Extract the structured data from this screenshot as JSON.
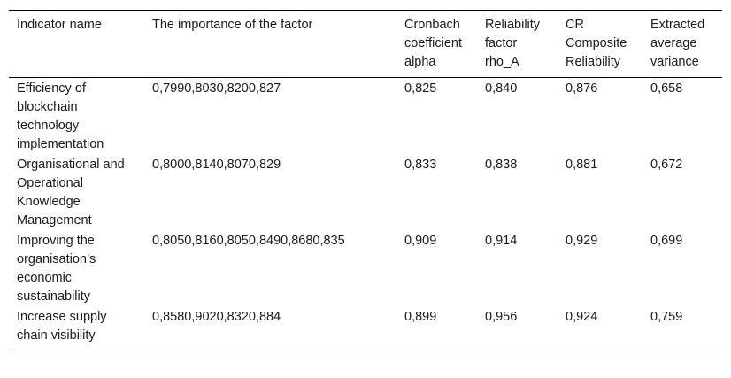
{
  "table": {
    "headers": [
      "Indicator name",
      "The importance of the factor",
      "Cronbach coefficient alpha",
      "Reliability factor rho_A",
      "CR Composite Reliability",
      "Extracted average variance"
    ],
    "rows": [
      [
        "Efficiency of blockchain technology implementation",
        "0,7990,8030,8200,827",
        "0,825",
        "0,840",
        "0,876",
        "0,658"
      ],
      [
        "Organisational and Operational Knowledge Management",
        "0,8000,8140,8070,829",
        "0,833",
        "0,838",
        "0,881",
        "0,672"
      ],
      [
        "Improving the organisation’s economic sustainability",
        "0,8050,8160,8050,8490,8680,835",
        "0,909",
        "0,914",
        "0,929",
        "0,699"
      ],
      [
        "Increase supply chain visibility",
        "0,8580,9020,8320,884",
        "0,899",
        "0,956",
        "0,924",
        "0,759"
      ]
    ]
  }
}
